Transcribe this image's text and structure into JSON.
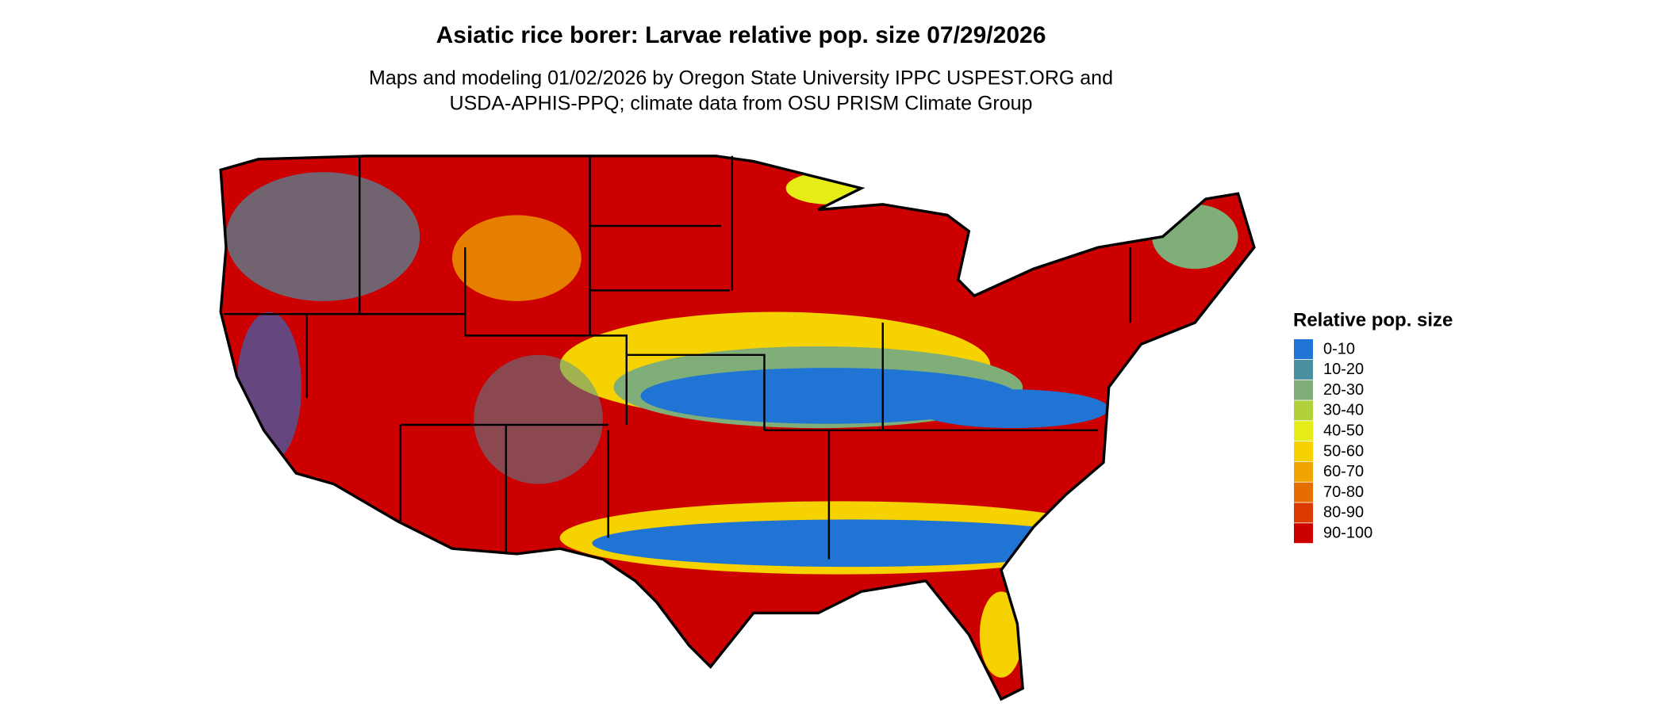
{
  "header": {
    "title": "Asiatic rice borer: Larvae relative pop. size 07/29/2026",
    "subtitle": [
      "Maps and modeling 01/02/2026 by Oregon State University IPPC USPEST.ORG and",
      "USDA-APHIS-PPQ; climate data from OSU PRISM Climate Group"
    ]
  },
  "legend": {
    "title": "Relative pop. size",
    "items": [
      {
        "label": "0-10",
        "color": "#1f74d4"
      },
      {
        "label": "10-20",
        "color": "#4a8fa0"
      },
      {
        "label": "20-30",
        "color": "#7fae78"
      },
      {
        "label": "30-40",
        "color": "#b2d03a"
      },
      {
        "label": "40-50",
        "color": "#e6ec18"
      },
      {
        "label": "50-60",
        "color": "#f6d200"
      },
      {
        "label": "60-70",
        "color": "#f0a400"
      },
      {
        "label": "70-80",
        "color": "#e66e00"
      },
      {
        "label": "80-90",
        "color": "#dc3a00"
      },
      {
        "label": "90-100",
        "color": "#cc0000"
      }
    ]
  }
}
